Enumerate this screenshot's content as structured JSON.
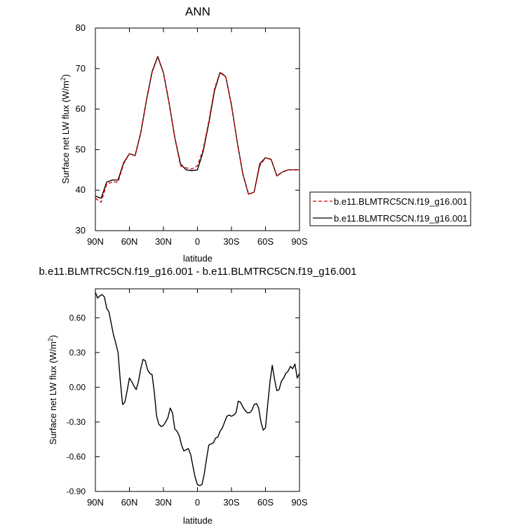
{
  "chart_data": [
    {
      "type": "line",
      "title": "ANN",
      "xlabel": "latitude",
      "ylabel_main": "Surface net LW flux (W/m",
      "ylabel_sup": "2",
      "ylabel_tail": ")",
      "xlim": [
        90,
        -90
      ],
      "ylim": [
        30,
        80
      ],
      "xticks": [
        90,
        60,
        30,
        0,
        -30,
        -60,
        -90
      ],
      "xtick_labels": [
        "90N",
        "60N",
        "30N",
        "0",
        "30S",
        "60S",
        "90S"
      ],
      "yticks": [
        30,
        40,
        50,
        60,
        70,
        80
      ],
      "ytick_labels": [
        "30",
        "40",
        "50",
        "60",
        "70",
        "80"
      ],
      "x": [
        90,
        85,
        80,
        75,
        70,
        65,
        60,
        55,
        50,
        45,
        40,
        35,
        30,
        25,
        20,
        15,
        10,
        5,
        0,
        -5,
        -10,
        -15,
        -20,
        -25,
        -30,
        -35,
        -40,
        -45,
        -50,
        -55,
        -60,
        -65,
        -70,
        -75,
        -80,
        -85,
        -90
      ],
      "series": [
        {
          "name": "b.e11.BLMTRC5CN.f19_g16.001",
          "color": "#dd0000",
          "dash": "dashed",
          "values": [
            38.0,
            37.0,
            41.5,
            42.0,
            42.0,
            46.5,
            49.0,
            48.5,
            54.0,
            62.0,
            69.0,
            72.8,
            69.0,
            61.5,
            53.0,
            46.0,
            45.5,
            45.2,
            46.0,
            50.0,
            57.0,
            65.0,
            69.2,
            68.0,
            61.0,
            52.0,
            44.0,
            39.0,
            39.5,
            46.0,
            48.0,
            47.5,
            43.5,
            44.5,
            45.0,
            45.0,
            45.0
          ]
        },
        {
          "name": "b.e11.BLMTRC5CN.f19_g16.001",
          "color": "#000000",
          "dash": "solid",
          "values": [
            38.5,
            38.0,
            42.0,
            42.5,
            42.5,
            46.8,
            49.0,
            48.5,
            54.2,
            62.2,
            69.2,
            73.0,
            69.0,
            61.5,
            53.0,
            46.5,
            45.0,
            44.8,
            45.0,
            49.5,
            56.5,
            64.5,
            69.0,
            68.0,
            61.0,
            52.0,
            44.0,
            39.0,
            39.5,
            46.5,
            48.0,
            47.6,
            43.5,
            44.5,
            45.0,
            45.0,
            45.0
          ]
        }
      ],
      "legend": "right"
    },
    {
      "type": "line",
      "title": "b.e11.BLMTRC5CN.f19_g16.001 - b.e11.BLMTRC5CN.f19_g16.001",
      "xlabel": "latitude",
      "ylabel_main": "Surface net LW flux (W/m",
      "ylabel_sup": "2",
      "ylabel_tail": ")",
      "xlim": [
        90,
        -90
      ],
      "ylim": [
        -0.9,
        0.85
      ],
      "xticks": [
        90,
        60,
        30,
        0,
        -30,
        -60,
        -90
      ],
      "xtick_labels": [
        "90N",
        "60N",
        "30N",
        "0",
        "30S",
        "60S",
        "90S"
      ],
      "yticks": [
        -0.9,
        -0.6,
        -0.3,
        0.0,
        0.3,
        0.6
      ],
      "ytick_labels": [
        "-0.90",
        "-0.60",
        "-0.30",
        "0.00",
        "0.30",
        "0.60"
      ],
      "x": [
        90,
        88,
        86,
        84,
        82,
        80,
        78,
        76,
        74,
        72,
        70,
        68,
        66,
        64,
        62,
        60,
        58,
        56,
        54,
        52,
        50,
        48,
        46,
        44,
        42,
        40,
        38,
        36,
        34,
        32,
        30,
        28,
        26,
        24,
        22,
        20,
        18,
        16,
        14,
        12,
        10,
        8,
        6,
        4,
        2,
        0,
        -2,
        -4,
        -6,
        -8,
        -10,
        -12,
        -14,
        -16,
        -18,
        -20,
        -22,
        -24,
        -26,
        -28,
        -30,
        -32,
        -34,
        -36,
        -38,
        -40,
        -42,
        -44,
        -46,
        -48,
        -50,
        -52,
        -54,
        -56,
        -58,
        -60,
        -62,
        -64,
        -66,
        -68,
        -70,
        -72,
        -74,
        -76,
        -78,
        -80,
        -82,
        -84,
        -86,
        -88,
        -90
      ],
      "series": [
        {
          "name": "",
          "color": "#000000",
          "dash": "solid",
          "values": [
            0.82,
            0.77,
            0.79,
            0.8,
            0.78,
            0.68,
            0.65,
            0.55,
            0.45,
            0.38,
            0.3,
            0.05,
            -0.15,
            -0.13,
            -0.03,
            0.08,
            0.05,
            0.01,
            -0.02,
            0.05,
            0.16,
            0.24,
            0.23,
            0.15,
            0.12,
            0.11,
            -0.05,
            -0.25,
            -0.32,
            -0.34,
            -0.33,
            -0.3,
            -0.26,
            -0.18,
            -0.22,
            -0.36,
            -0.38,
            -0.42,
            -0.5,
            -0.55,
            -0.54,
            -0.53,
            -0.58,
            -0.68,
            -0.78,
            -0.84,
            -0.85,
            -0.84,
            -0.75,
            -0.62,
            -0.5,
            -0.49,
            -0.48,
            -0.44,
            -0.43,
            -0.38,
            -0.35,
            -0.3,
            -0.25,
            -0.24,
            -0.25,
            -0.24,
            -0.22,
            -0.12,
            -0.13,
            -0.17,
            -0.2,
            -0.22,
            -0.22,
            -0.2,
            -0.15,
            -0.14,
            -0.18,
            -0.3,
            -0.37,
            -0.35,
            -0.15,
            0.05,
            0.19,
            0.07,
            -0.03,
            -0.02,
            0.05,
            0.08,
            0.12,
            0.14,
            0.18,
            0.16,
            0.2,
            0.08,
            0.12
          ]
        }
      ]
    }
  ]
}
